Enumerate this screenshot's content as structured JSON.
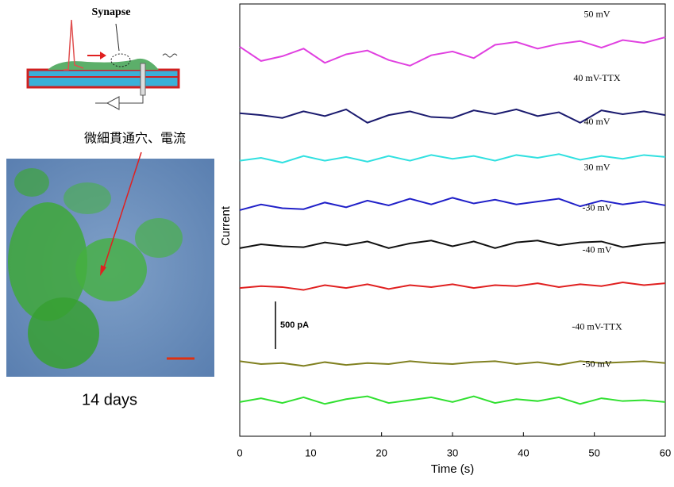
{
  "schematic": {
    "label": "Synapse"
  },
  "micrograph": {
    "annotation": "微細貫通穴、電流",
    "caption": "14 days"
  },
  "chart_data": {
    "type": "line",
    "x_label": "Time (s)",
    "y_label": "Current",
    "xlim": [
      0,
      60
    ],
    "xticks": [
      0,
      10,
      20,
      30,
      40,
      50,
      60
    ],
    "ylim": [
      0,
      4550
    ],
    "scale_bar": {
      "value": 500,
      "label": "500 pA"
    },
    "x": [
      0,
      3,
      6,
      9,
      12,
      15,
      18,
      21,
      24,
      27,
      30,
      33,
      36,
      39,
      42,
      45,
      48,
      51,
      54,
      57,
      60
    ],
    "series": [
      {
        "name": "50 mV",
        "color": "#e040e0",
        "values": [
          4100,
          3950,
          4000,
          4080,
          3930,
          4020,
          4060,
          3960,
          3900,
          4010,
          4050,
          3980,
          4120,
          4150,
          4080,
          4130,
          4160,
          4090,
          4170,
          4140,
          4200
        ]
      },
      {
        "name": "40 mV-TTX",
        "color": "#1a1a6e",
        "values": [
          3400,
          3380,
          3350,
          3420,
          3370,
          3440,
          3300,
          3380,
          3420,
          3360,
          3350,
          3430,
          3390,
          3440,
          3370,
          3410,
          3300,
          3430,
          3390,
          3420,
          3380
        ]
      },
      {
        "name": "40 mV",
        "color": "#30e0e0",
        "values": [
          2900,
          2930,
          2880,
          2950,
          2900,
          2940,
          2890,
          2950,
          2900,
          2960,
          2920,
          2950,
          2900,
          2960,
          2930,
          2970,
          2910,
          2950,
          2920,
          2960,
          2940
        ]
      },
      {
        "name": "30 mV",
        "color": "#2020c8",
        "values": [
          2380,
          2440,
          2400,
          2390,
          2460,
          2410,
          2480,
          2430,
          2500,
          2440,
          2510,
          2450,
          2490,
          2440,
          2470,
          2500,
          2420,
          2480,
          2440,
          2470,
          2430
        ]
      },
      {
        "name": "-30 mV",
        "color": "#111111",
        "values": [
          1980,
          2020,
          2000,
          1990,
          2040,
          2010,
          2050,
          1980,
          2030,
          2060,
          2000,
          2050,
          1980,
          2040,
          2060,
          2010,
          2040,
          2050,
          1990,
          2020,
          2040
        ]
      },
      {
        "name": "-40 mV",
        "color": "#e02020",
        "values": [
          1560,
          1580,
          1570,
          1540,
          1590,
          1560,
          1600,
          1550,
          1590,
          1570,
          1600,
          1560,
          1590,
          1580,
          1610,
          1570,
          1600,
          1580,
          1620,
          1590,
          1610
        ]
      },
      {
        "name": "-40 mV-TTX",
        "color": "#808020",
        "values": [
          790,
          760,
          770,
          740,
          780,
          750,
          770,
          760,
          790,
          770,
          760,
          780,
          790,
          760,
          780,
          750,
          790,
          770,
          780,
          790,
          770
        ]
      },
      {
        "name": "-50 mV",
        "color": "#30e030",
        "values": [
          360,
          400,
          350,
          410,
          340,
          390,
          420,
          350,
          380,
          410,
          360,
          420,
          350,
          390,
          370,
          410,
          340,
          400,
          370,
          380,
          360
        ]
      }
    ]
  }
}
